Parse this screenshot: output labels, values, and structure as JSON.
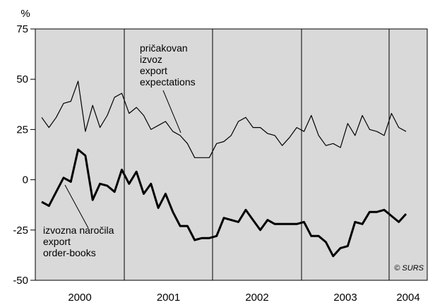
{
  "chart_data": {
    "type": "line",
    "y_unit": "%",
    "ylim": [
      -50,
      75
    ],
    "y_ticks": [
      75,
      50,
      25,
      0,
      -25,
      -50
    ],
    "y_tick_labels": [
      "75",
      "50",
      "25",
      "0",
      "-25",
      "-50"
    ],
    "x_start": "2000-01",
    "x_end": "2004-03",
    "years": [
      "2000",
      "2001",
      "2002",
      "2003",
      "2004"
    ],
    "grid": false,
    "background_color": "#d9d9d9",
    "series": [
      {
        "name": "pričakovan izvoz export expectations",
        "label_lines": [
          "pričakovan",
          "izvoz",
          "export",
          "expectations"
        ],
        "color": "#000000",
        "emphasis": "thin",
        "values": [
          31,
          26,
          31,
          38,
          39,
          49,
          24,
          37,
          26,
          32,
          41,
          43,
          33,
          36,
          32,
          25,
          27,
          29,
          24,
          22,
          18,
          11,
          11,
          11,
          18,
          19,
          22,
          29,
          31,
          26,
          26,
          23,
          22,
          17,
          21,
          26,
          24,
          32,
          22,
          17,
          18,
          16,
          28,
          22,
          32,
          25,
          24,
          22,
          33,
          26,
          24
        ]
      },
      {
        "name": "izvozna naročila export order-books",
        "label_lines": [
          "izvozna naročila",
          "export",
          "order-books"
        ],
        "color": "#000000",
        "emphasis": "bold",
        "values": [
          -11,
          -13,
          -6,
          1,
          -1,
          15,
          12,
          -10,
          -2,
          -3,
          -6,
          5,
          -2,
          4,
          -7,
          -2,
          -14,
          -7,
          -16,
          -23,
          -23,
          -30,
          -29,
          -29,
          -28,
          -19,
          -20,
          -21,
          -15,
          -20,
          -25,
          -20,
          -22,
          -22,
          -22,
          -22,
          -21,
          -28,
          -28,
          -31,
          -38,
          -34,
          -33,
          -21,
          -22,
          -16,
          -16,
          -15,
          -18,
          -21,
          -17
        ]
      }
    ],
    "credit": "© SURS"
  }
}
